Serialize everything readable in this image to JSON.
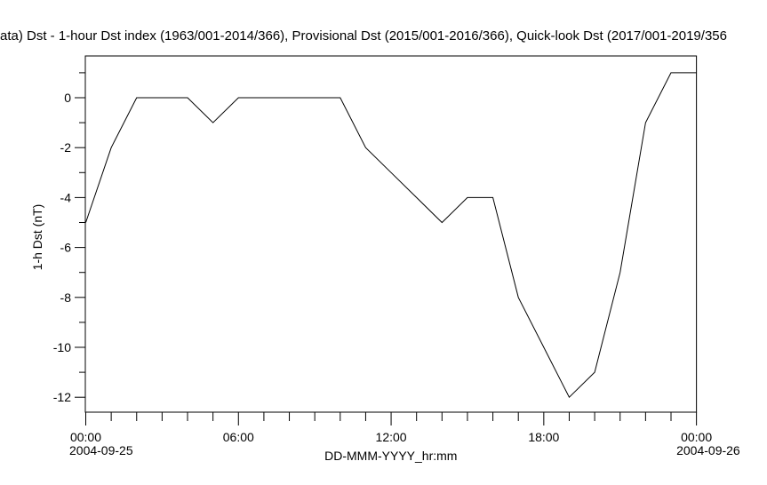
{
  "chart": {
    "title_visible": "ata)  Dst - 1-hour Dst index (1963/001-2014/366), Provisional Dst (2015/001-2016/366), Quick-look Dst (2017/001-2019/356"
  },
  "chart_data": {
    "type": "line",
    "title": "ata)  Dst - 1-hour Dst index (1963/001-2014/366), Provisional Dst (2015/001-2016/366), Quick-look Dst (2017/001-2019/356",
    "xlabel": "DD-MMM-YYYY_hr:mm",
    "ylabel": "1-h Dst (nT)",
    "x_unit": "hours since 2004-09-25 00:00",
    "x": [
      0,
      1,
      2,
      3,
      4,
      5,
      6,
      7,
      8,
      9,
      10,
      11,
      12,
      13,
      14,
      15,
      16,
      17,
      18,
      19,
      20,
      21,
      22,
      23,
      24
    ],
    "series": [
      {
        "name": "1-h Dst",
        "values": [
          -5,
          -2,
          0,
          0,
          0,
          -1,
          0,
          0,
          0,
          0,
          0,
          -2,
          -3,
          -4,
          -5,
          -4,
          -4,
          -8,
          -10,
          -12,
          -11,
          -7,
          -1,
          1,
          1
        ]
      }
    ],
    "x_major_ticks_hours": [
      0,
      6,
      12,
      18,
      24
    ],
    "x_major_tick_labels": [
      "00:00",
      "06:00",
      "12:00",
      "18:00",
      "00:00"
    ],
    "x_minor_tick_interval_hours": 1,
    "x_start_date": "2004-09-25",
    "x_end_date": "2004-09-26",
    "y_major_ticks": [
      0,
      -2,
      -4,
      -6,
      -8,
      -10,
      -12
    ],
    "y_minor_ticks": [
      1,
      -1,
      -3,
      -5,
      -7,
      -9,
      -11
    ],
    "ylim": [
      -12.6,
      1.7
    ],
    "xlim": [
      0,
      24
    ],
    "grid": false,
    "legend": false,
    "line_color": "#000000",
    "background_color": "#ffffff"
  }
}
